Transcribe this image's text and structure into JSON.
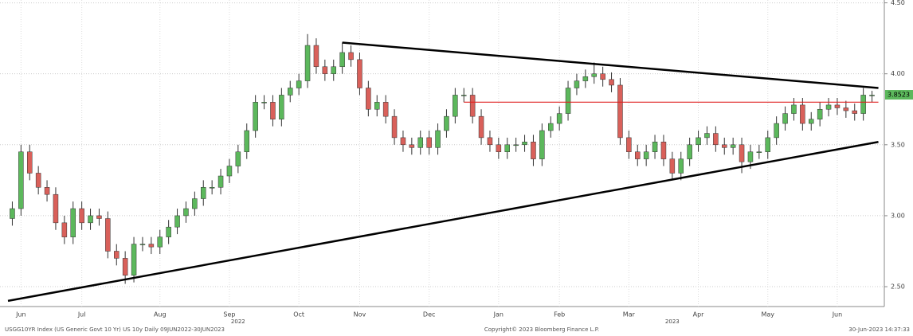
{
  "chart_data": {
    "type": "candlestick",
    "categories": [
      null,
      "Jun",
      null,
      null,
      null,
      null,
      null,
      null,
      "Jul",
      null,
      null,
      null,
      null,
      null,
      null,
      null,
      null,
      "Aug",
      null,
      null,
      null,
      null,
      null,
      null,
      null,
      "Sep",
      null,
      null,
      null,
      null,
      null,
      null,
      null,
      "Oct",
      null,
      null,
      null,
      null,
      null,
      null,
      "Nov",
      null,
      null,
      null,
      null,
      null,
      null,
      null,
      "Dec",
      null,
      null,
      null,
      null,
      null,
      null,
      null,
      "Jan",
      null,
      null,
      null,
      null,
      null,
      null,
      "Feb",
      null,
      null,
      null,
      null,
      null,
      null,
      null,
      "Mar",
      null,
      null,
      null,
      null,
      null,
      null,
      null,
      "Apr",
      null,
      null,
      null,
      null,
      null,
      null,
      null,
      "May",
      null,
      null,
      null,
      null,
      null,
      null,
      null,
      "Jun",
      null,
      null,
      null,
      null
    ],
    "year_categories": [
      null,
      null,
      null,
      null,
      null,
      null,
      null,
      null,
      null,
      null,
      null,
      null,
      null,
      null,
      null,
      null,
      null,
      null,
      null,
      null,
      null,
      null,
      null,
      null,
      null,
      null,
      "2022",
      null,
      null,
      null,
      null,
      null,
      null,
      null,
      null,
      null,
      null,
      null,
      null,
      null,
      null,
      null,
      null,
      null,
      null,
      null,
      null,
      null,
      null,
      null,
      null,
      null,
      null,
      null,
      null,
      null,
      null,
      null,
      null,
      null,
      null,
      null,
      null,
      null,
      null,
      null,
      null,
      null,
      null,
      null,
      null,
      null,
      null,
      null,
      null,
      null,
      "2023",
      null,
      null,
      null,
      null,
      null,
      null,
      null,
      null,
      null,
      null,
      null,
      null,
      null,
      null,
      null,
      null,
      null,
      null,
      null,
      null,
      null,
      null,
      null
    ],
    "open": [
      2.98,
      3.05,
      3.45,
      3.3,
      3.2,
      3.15,
      2.95,
      2.85,
      3.05,
      2.95,
      3.0,
      2.98,
      2.75,
      2.7,
      2.58,
      2.8,
      2.8,
      2.78,
      2.85,
      2.92,
      3.0,
      3.05,
      3.12,
      3.2,
      3.2,
      3.28,
      3.35,
      3.45,
      3.6,
      3.8,
      3.8,
      3.68,
      3.85,
      3.9,
      3.95,
      4.2,
      4.05,
      4.0,
      4.05,
      4.15,
      4.1,
      3.9,
      3.75,
      3.8,
      3.7,
      3.55,
      3.5,
      3.48,
      3.55,
      3.48,
      3.6,
      3.7,
      3.85,
      3.85,
      3.7,
      3.55,
      3.5,
      3.45,
      3.5,
      3.5,
      3.52,
      3.4,
      3.6,
      3.65,
      3.72,
      3.9,
      3.95,
      3.98,
      4.0,
      3.96,
      3.92,
      3.55,
      3.45,
      3.4,
      3.45,
      3.52,
      3.4,
      3.3,
      3.4,
      3.5,
      3.55,
      3.58,
      3.5,
      3.48,
      3.5,
      3.38,
      3.45,
      3.45,
      3.55,
      3.65,
      3.72,
      3.78,
      3.65,
      3.68,
      3.75,
      3.78,
      3.76,
      3.74,
      3.72,
      3.85
    ],
    "high": [
      3.1,
      3.5,
      3.5,
      3.35,
      3.25,
      3.2,
      3.0,
      3.1,
      3.1,
      3.05,
      3.05,
      3.03,
      2.8,
      2.75,
      2.85,
      2.85,
      2.85,
      2.9,
      2.97,
      3.05,
      3.1,
      3.17,
      3.25,
      3.25,
      3.33,
      3.4,
      3.5,
      3.65,
      3.85,
      3.85,
      3.85,
      3.9,
      3.95,
      4.0,
      4.28,
      4.25,
      4.1,
      4.1,
      4.22,
      4.2,
      4.15,
      3.95,
      3.85,
      3.85,
      3.75,
      3.6,
      3.55,
      3.6,
      3.6,
      3.65,
      3.75,
      3.9,
      3.9,
      3.9,
      3.75,
      3.6,
      3.55,
      3.55,
      3.55,
      3.57,
      3.57,
      3.65,
      3.7,
      3.77,
      3.95,
      4.0,
      4.03,
      4.08,
      4.05,
      4.01,
      3.97,
      3.6,
      3.5,
      3.5,
      3.57,
      3.57,
      3.45,
      3.45,
      3.55,
      3.6,
      3.63,
      3.63,
      3.55,
      3.55,
      3.55,
      3.5,
      3.5,
      3.6,
      3.7,
      3.77,
      3.83,
      3.83,
      3.73,
      3.8,
      3.83,
      3.83,
      3.81,
      3.79,
      3.9,
      3.88
    ],
    "low": [
      2.93,
      3.0,
      3.25,
      3.15,
      3.1,
      2.9,
      2.8,
      2.8,
      2.9,
      2.9,
      2.93,
      2.7,
      2.65,
      2.52,
      2.53,
      2.75,
      2.73,
      2.73,
      2.8,
      2.87,
      2.95,
      3.0,
      3.07,
      3.15,
      3.15,
      3.23,
      3.3,
      3.4,
      3.55,
      3.75,
      3.63,
      3.63,
      3.8,
      3.85,
      3.9,
      4.0,
      3.95,
      3.95,
      4.0,
      4.05,
      3.85,
      3.7,
      3.7,
      3.65,
      3.5,
      3.45,
      3.43,
      3.43,
      3.43,
      3.43,
      3.55,
      3.65,
      3.8,
      3.65,
      3.5,
      3.45,
      3.4,
      3.4,
      3.45,
      3.45,
      3.35,
      3.35,
      3.55,
      3.6,
      3.67,
      3.85,
      3.9,
      3.93,
      3.91,
      3.87,
      3.5,
      3.4,
      3.35,
      3.35,
      3.4,
      3.35,
      3.26,
      3.25,
      3.35,
      3.45,
      3.5,
      3.45,
      3.43,
      3.43,
      3.3,
      3.33,
      3.4,
      3.4,
      3.5,
      3.6,
      3.67,
      3.6,
      3.6,
      3.63,
      3.7,
      3.71,
      3.69,
      3.67,
      3.67,
      3.8
    ],
    "close": [
      3.05,
      3.45,
      3.3,
      3.2,
      3.15,
      2.95,
      2.85,
      3.05,
      2.95,
      3.0,
      2.98,
      2.75,
      2.7,
      2.58,
      2.8,
      2.8,
      2.78,
      2.85,
      2.92,
      3.0,
      3.05,
      3.12,
      3.2,
      3.2,
      3.28,
      3.35,
      3.45,
      3.6,
      3.8,
      3.8,
      3.68,
      3.85,
      3.9,
      3.95,
      4.2,
      4.05,
      4.0,
      4.05,
      4.15,
      4.1,
      3.9,
      3.75,
      3.8,
      3.7,
      3.55,
      3.5,
      3.48,
      3.55,
      3.48,
      3.6,
      3.7,
      3.85,
      3.85,
      3.7,
      3.55,
      3.5,
      3.45,
      3.5,
      3.5,
      3.52,
      3.4,
      3.6,
      3.65,
      3.72,
      3.9,
      3.95,
      3.98,
      4.0,
      3.96,
      3.92,
      3.55,
      3.45,
      3.4,
      3.45,
      3.52,
      3.4,
      3.3,
      3.4,
      3.5,
      3.55,
      3.58,
      3.5,
      3.48,
      3.5,
      3.38,
      3.45,
      3.45,
      3.55,
      3.65,
      3.72,
      3.78,
      3.65,
      3.68,
      3.75,
      3.78,
      3.76,
      3.74,
      3.72,
      3.85,
      3.85
    ],
    "up_color": "#5cb85c",
    "down_color": "#d9605a",
    "ylim": [
      2.36,
      4.52
    ],
    "yticks": [
      {
        "value": 2.5,
        "label": "2.50"
      },
      {
        "value": 3,
        "label": "3.00"
      },
      {
        "value": 3.5,
        "label": "3.50"
      },
      {
        "value": 4,
        "label": "4.00"
      },
      {
        "value": 4.5,
        "label": "4.50"
      }
    ],
    "grid": true,
    "trendlines": [
      {
        "color": "#000000",
        "x": [
          0,
          99
        ],
        "values": [
          2.4,
          3.52
        ]
      },
      {
        "color": "#000000",
        "x": [
          38,
          99
        ],
        "values": [
          4.22,
          3.9
        ]
      },
      {
        "color": "#e02020",
        "x": [
          52,
          99
        ],
        "values": [
          3.8,
          3.8
        ]
      }
    ],
    "last_price": 3.8523,
    "footer_left": "USGG10YR Index (US Generic Govt 10 Yr) US 10y  Daily 09JUN2022-30JUN2023",
    "footer_center": "Copyright© 2023 Bloomberg Finance L.P.",
    "footer_right": "30-Jun-2023 14:37:33"
  }
}
